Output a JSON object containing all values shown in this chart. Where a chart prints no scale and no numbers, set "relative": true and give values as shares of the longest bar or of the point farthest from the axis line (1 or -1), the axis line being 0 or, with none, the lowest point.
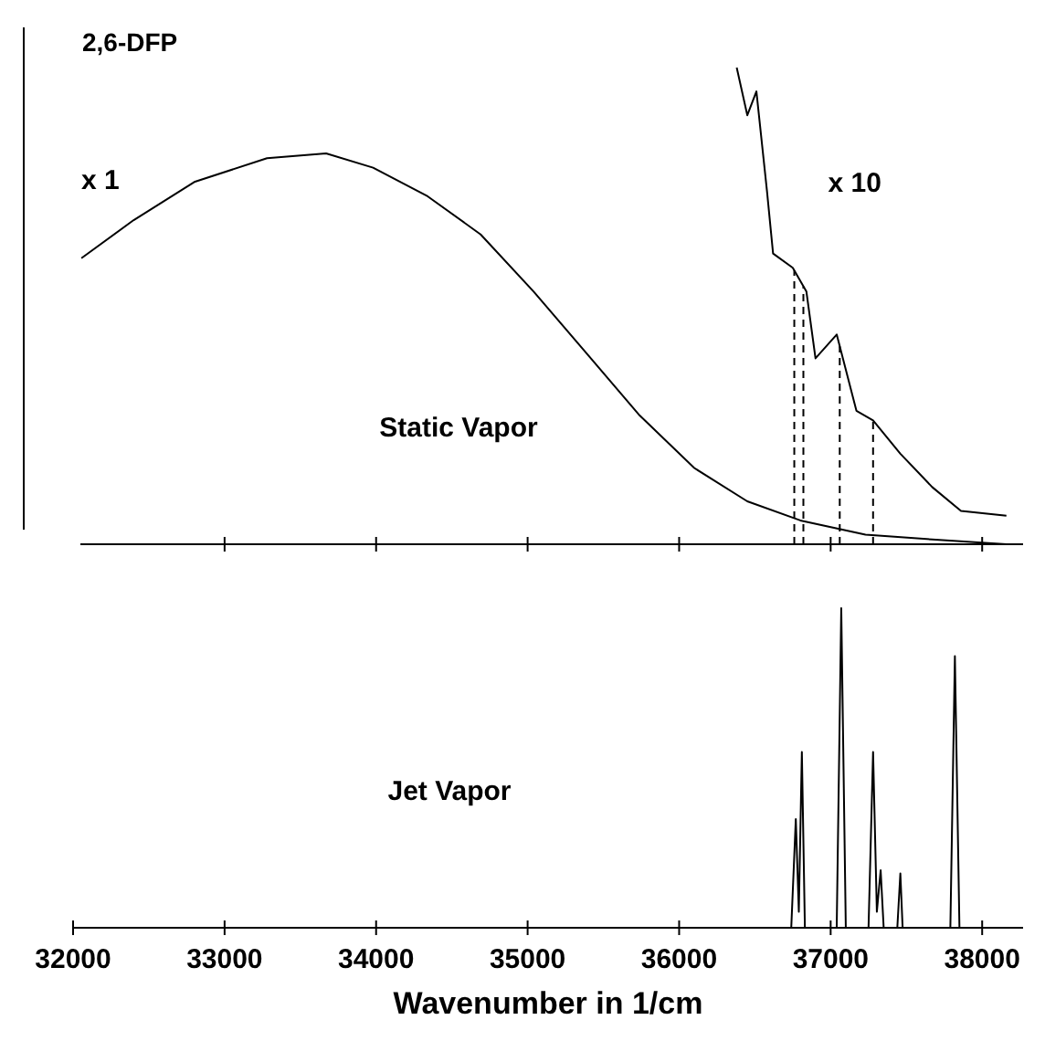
{
  "chart_data": [
    {
      "type": "line",
      "title": "2,6-DFP",
      "relative": true,
      "xlim": [
        32000,
        38270
      ],
      "xticks": [
        33000,
        34000,
        35000,
        36000,
        37000,
        38000
      ],
      "tick_labels": false,
      "annotations": [
        "Static Vapor"
      ],
      "line_style": "solid",
      "marker": "none",
      "series": [
        {
          "name": "x 1",
          "color": "#000000",
          "x": [
            32055,
            32400,
            32800,
            33280,
            33670,
            33980,
            34340,
            34690,
            35040,
            35390,
            35740,
            36100,
            36450,
            36800,
            37230,
            37670,
            38160
          ],
          "values": [
            0.6,
            0.68,
            0.76,
            0.81,
            0.82,
            0.79,
            0.73,
            0.65,
            0.53,
            0.4,
            0.27,
            0.16,
            0.09,
            0.05,
            0.02,
            0.01,
            0.0
          ]
        },
        {
          "name": "x 10",
          "color": "#000000",
          "x": [
            36380,
            36450,
            36510,
            36580,
            36620,
            36750,
            36840,
            36900,
            37040,
            37170,
            37280,
            37460,
            37670,
            37860,
            38160
          ],
          "values": [
            1.0,
            0.9,
            0.95,
            0.74,
            0.61,
            0.58,
            0.53,
            0.39,
            0.44,
            0.28,
            0.26,
            0.19,
            0.12,
            0.07,
            0.06
          ]
        }
      ],
      "ref_lines": [
        {
          "axis": "x",
          "value": 36760,
          "line_style": "dashed",
          "color": "#000000"
        },
        {
          "axis": "x",
          "value": 36820,
          "line_style": "dashed",
          "color": "#000000"
        },
        {
          "axis": "x",
          "value": 37060,
          "line_style": "dashed",
          "color": "#000000"
        },
        {
          "axis": "x",
          "value": 37280,
          "line_style": "dashed",
          "color": "#000000"
        }
      ]
    },
    {
      "type": "line",
      "relative": true,
      "xlabel": "Wavenumber in 1/cm",
      "xlim": [
        32000,
        38270
      ],
      "xticks": [
        32000,
        33000,
        34000,
        35000,
        36000,
        37000,
        38000
      ],
      "annotations": [
        "Jet Vapor"
      ],
      "line_style": "solid",
      "marker": "none",
      "series": [
        {
          "color": "#000000",
          "x": [
            32000,
            36740,
            36770,
            36790,
            36810,
            36830,
            37040,
            37070,
            37100,
            37250,
            37280,
            37305,
            37330,
            37350,
            37440,
            37460,
            37475,
            37790,
            37820,
            37850,
            38270
          ],
          "values": [
            0,
            0,
            0.34,
            0.05,
            0.55,
            0,
            0,
            1,
            0,
            0,
            0.55,
            0.05,
            0.18,
            0,
            0,
            0.17,
            0,
            0,
            0.85,
            0,
            0
          ]
        }
      ]
    }
  ]
}
